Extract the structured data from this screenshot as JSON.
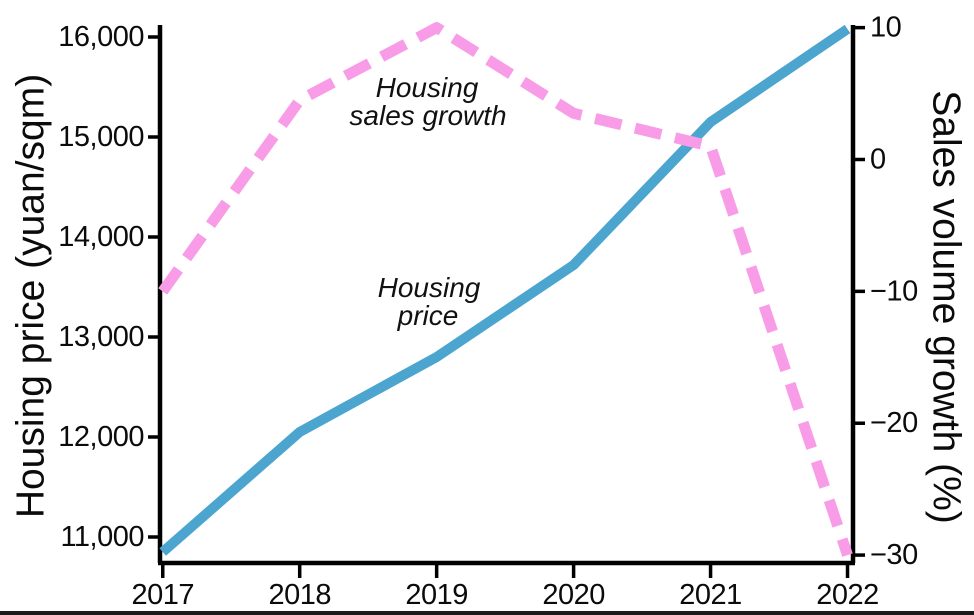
{
  "chart_data": {
    "type": "line",
    "title": "",
    "x": [
      2017,
      2018,
      2019,
      2020,
      2021,
      2022
    ],
    "x_tick_labels": [
      "2017",
      "2018",
      "2019",
      "2020",
      "2021",
      "2022"
    ],
    "xlim": [
      2016.98,
      2022.04
    ],
    "grid": false,
    "legend_position": "inline-annotations",
    "left_axis": {
      "label": "Housing price (yuan/sqm)",
      "ylim": [
        10740,
        16120
      ],
      "ticks": [
        {
          "value": 11000,
          "label": "11,000"
        },
        {
          "value": 12000,
          "label": "12,000"
        },
        {
          "value": 13000,
          "label": "13,000"
        },
        {
          "value": 14000,
          "label": "14,000"
        },
        {
          "value": 15000,
          "label": "15,000"
        },
        {
          "value": 16000,
          "label": "16,000"
        }
      ]
    },
    "right_axis": {
      "label": "Sales volume growth (%)",
      "ylim": [
        -30.6,
        10.2
      ],
      "ticks": [
        {
          "value": 10,
          "label": "10"
        },
        {
          "value": 0,
          "label": "0"
        },
        {
          "value": -10,
          "label": "−10"
        },
        {
          "value": -20,
          "label": "−20"
        },
        {
          "value": -30,
          "label": "−30"
        }
      ]
    },
    "series": [
      {
        "name": "Housing price",
        "axis": "left",
        "style": "solid",
        "color": "#4BA5CE",
        "values": [
          10850,
          12050,
          12800,
          13720,
          15150,
          16080
        ]
      },
      {
        "name": "Housing sales growth",
        "axis": "right",
        "style": "dashed",
        "color": "#F99CE8",
        "values": [
          -10,
          4.5,
          10,
          3.5,
          1,
          -30
        ]
      }
    ],
    "annotations": [
      {
        "id": "sales-growth-label",
        "line1": "Housing",
        "line2": "sales growth"
      },
      {
        "id": "price-label",
        "line1": "Housing",
        "line2": "price"
      }
    ]
  },
  "colors": {
    "axis": "#000000",
    "housing_price_line": "#4BA5CE",
    "sales_growth_line": "#F99CE8",
    "bottom_strip": "#1C1C1C"
  }
}
